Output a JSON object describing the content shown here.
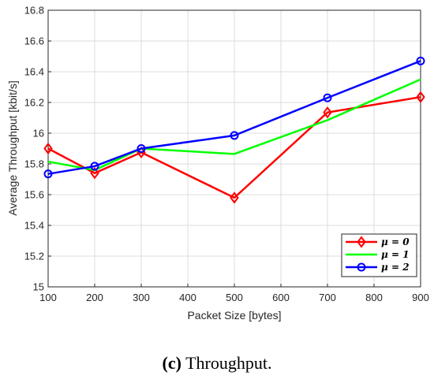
{
  "chart_data": {
    "type": "line",
    "xlabel": "Packet Size [bytes]",
    "ylabel": "Average Throughput [kbit/s]",
    "xlim": [
      100,
      900
    ],
    "ylim": [
      15,
      16.8
    ],
    "xticks": [
      100,
      200,
      300,
      400,
      500,
      600,
      700,
      800,
      900
    ],
    "yticks": [
      15,
      15.2,
      15.4,
      15.6,
      15.8,
      16,
      16.2,
      16.4,
      16.6,
      16.8
    ],
    "ytick_labels": [
      "15",
      "15.2",
      "15.4",
      "15.6",
      "15.8",
      "16",
      "16.2",
      "16.4",
      "16.6",
      "16.8"
    ],
    "grid": true,
    "legend_position": "bottom-right",
    "x": [
      100,
      200,
      300,
      500,
      700,
      900
    ],
    "series": [
      {
        "name": "μ = 0",
        "color": "#ff0000",
        "marker": "diamond",
        "values": [
          15.9,
          15.74,
          15.875,
          15.58,
          16.135,
          16.235
        ]
      },
      {
        "name": "μ = 1",
        "color": "#00ff00",
        "marker": "none",
        "values": [
          15.815,
          15.76,
          15.9,
          15.865,
          16.085,
          16.35
        ]
      },
      {
        "name": "μ = 2",
        "color": "#0000ff",
        "marker": "circle",
        "values": [
          15.735,
          15.785,
          15.9,
          15.985,
          16.23,
          16.47
        ]
      }
    ]
  },
  "caption": {
    "label": "(c)",
    "text": " Throughput."
  }
}
